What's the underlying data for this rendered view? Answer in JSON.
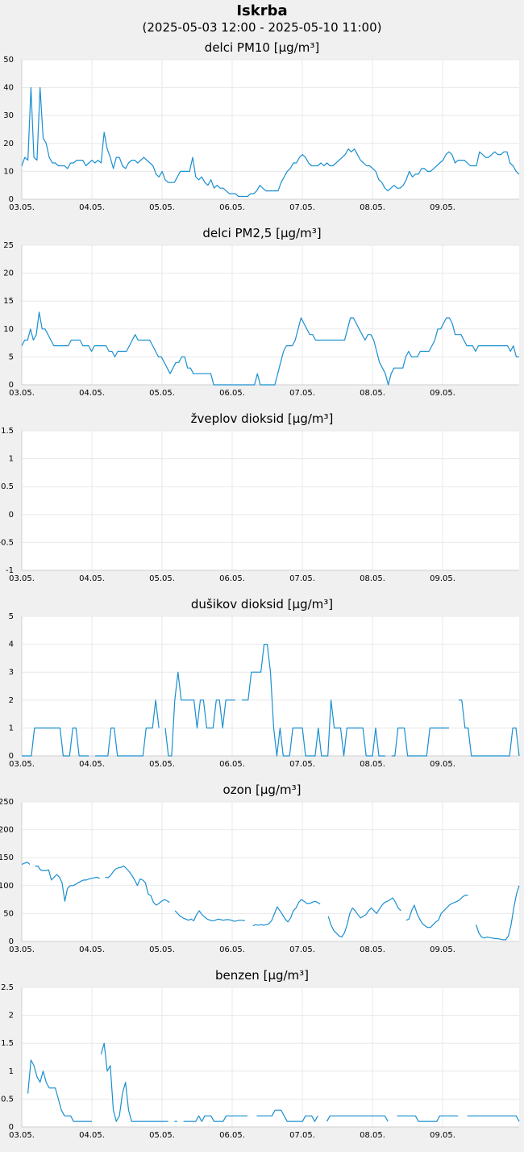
{
  "station": "Iskrba",
  "period": "(2025-05-03 12:00 - 2025-05-10 11:00)",
  "colors": {
    "series": "#1a8fd0",
    "grid": "#e8e8e8",
    "plot_background": "#ffffff",
    "page_background": "#f0f0f0"
  },
  "chart_data": [
    {
      "type": "line",
      "title": "delci PM10 [µg/m³]",
      "x_ticks": [
        "03.05.",
        "04.05.",
        "05.05.",
        "06.05.",
        "07.05.",
        "08.05.",
        "09.05."
      ],
      "y_ticks": [
        "0",
        "10",
        "20",
        "30",
        "40",
        "50"
      ],
      "ylim": [
        0,
        50
      ],
      "grid": true,
      "series": [
        {
          "values": [
            12,
            15,
            14,
            40,
            15,
            14,
            40,
            22,
            20,
            15,
            13,
            13,
            12,
            12,
            12,
            11,
            13,
            13,
            14,
            14,
            14,
            12,
            13,
            14,
            13,
            14,
            13,
            24,
            18,
            15,
            11,
            15,
            15,
            12,
            11,
            13,
            14,
            14,
            13,
            14,
            15,
            14,
            13,
            12,
            9,
            8,
            10,
            7,
            6,
            6,
            6,
            8,
            10,
            10,
            10,
            10,
            15,
            8,
            7,
            8,
            6,
            5,
            7,
            4,
            5,
            4,
            4,
            3,
            2,
            2,
            2,
            1,
            1,
            1,
            1,
            2,
            2,
            3,
            5,
            4,
            3,
            3,
            3,
            3,
            3,
            6,
            8,
            10,
            11,
            13,
            13,
            15,
            16,
            15,
            13,
            12,
            12,
            12,
            13,
            12,
            13,
            12,
            12,
            13,
            14,
            15,
            16,
            18,
            17,
            18,
            16,
            14,
            13,
            12,
            12,
            11,
            10,
            7,
            6,
            4,
            3,
            4,
            5,
            4,
            4,
            5,
            7,
            10,
            8,
            9,
            9,
            11,
            11,
            10,
            10,
            11,
            12,
            13,
            14,
            16,
            17,
            16,
            13,
            14,
            14,
            14,
            13,
            12,
            12,
            12,
            17,
            16,
            15,
            15,
            16,
            17,
            16,
            16,
            17,
            17,
            13,
            12,
            10,
            9
          ]
        }
      ]
    },
    {
      "type": "line",
      "title": "delci PM2,5 [µg/m³]",
      "x_ticks": [
        "03.05.",
        "04.05.",
        "05.05.",
        "06.05.",
        "07.05.",
        "08.05.",
        "09.05."
      ],
      "y_ticks": [
        "0",
        "5",
        "10",
        "15",
        "20",
        "25"
      ],
      "ylim": [
        0,
        25
      ],
      "grid": true,
      "series": [
        {
          "values": [
            7,
            8,
            8,
            10,
            8,
            9,
            13,
            10,
            10,
            9,
            8,
            7,
            7,
            7,
            7,
            7,
            7,
            8,
            8,
            8,
            8,
            7,
            7,
            7,
            6,
            7,
            7,
            7,
            7,
            7,
            6,
            6,
            5,
            6,
            6,
            6,
            6,
            7,
            8,
            9,
            8,
            8,
            8,
            8,
            8,
            7,
            6,
            5,
            5,
            4,
            3,
            2,
            3,
            4,
            4,
            5,
            5,
            3,
            3,
            2,
            2,
            2,
            2,
            2,
            2,
            2,
            0,
            0,
            0,
            0,
            0,
            0,
            0,
            0,
            0,
            0,
            0,
            0,
            0,
            0,
            0,
            2,
            0,
            0,
            0,
            0,
            0,
            0,
            2,
            4,
            6,
            7,
            7,
            7,
            8,
            10,
            12,
            11,
            10,
            9,
            9,
            8,
            8,
            8,
            8,
            8,
            8,
            8,
            8,
            8,
            8,
            8,
            10,
            12,
            12,
            11,
            10,
            9,
            8,
            9,
            9,
            8,
            6,
            4,
            3,
            2,
            0,
            2,
            3,
            3,
            3,
            3,
            5,
            6,
            5,
            5,
            5,
            6,
            6,
            6,
            6,
            7,
            8,
            10,
            10,
            11,
            12,
            12,
            11,
            9,
            9,
            9,
            8,
            7,
            7,
            7,
            6,
            7,
            7,
            7,
            7,
            7,
            7,
            7,
            7,
            7,
            7,
            7,
            6,
            7,
            5,
            5
          ]
        }
      ]
    },
    {
      "type": "line",
      "title": "žveplov dioksid [µg/m³]",
      "x_ticks": [
        "03.05.",
        "04.05.",
        "05.05.",
        "06.05.",
        "07.05.",
        "08.05.",
        "09.05."
      ],
      "y_ticks": [
        "-1",
        "-0.5",
        "0",
        "0.5",
        "1",
        "1.5"
      ],
      "ylim": [
        -1,
        1.5
      ],
      "grid": true,
      "series": [
        {
          "values": []
        }
      ]
    },
    {
      "type": "line",
      "title": "dušikov dioksid [µg/m³]",
      "x_ticks": [
        "03.05.",
        "04.05.",
        "05.05.",
        "06.05.",
        "07.05.",
        "08.05.",
        "09.05."
      ],
      "y_ticks": [
        "0",
        "1",
        "2",
        "3",
        "4",
        "5"
      ],
      "ylim": [
        0,
        5
      ],
      "grid": true,
      "series": [
        {
          "values": [
            0,
            0,
            0,
            0,
            1,
            1,
            1,
            1,
            1,
            1,
            1,
            1,
            1,
            0,
            0,
            0,
            1,
            1,
            0,
            0,
            0,
            0,
            null,
            0,
            0,
            0,
            0,
            0,
            1,
            1,
            0,
            0,
            0,
            0,
            0,
            0,
            0,
            0,
            0,
            1,
            1,
            1,
            2,
            1,
            null,
            1,
            0,
            0,
            2,
            3,
            2,
            2,
            2,
            2,
            2,
            1,
            2,
            2,
            1,
            1,
            1,
            2,
            2,
            1,
            2,
            2,
            2,
            2,
            null,
            2,
            2,
            2,
            3,
            3,
            3,
            3,
            4,
            4,
            3,
            1,
            0,
            1,
            0,
            0,
            0,
            1,
            1,
            1,
            1,
            0,
            0,
            0,
            0,
            1,
            0,
            0,
            0,
            2,
            1,
            1,
            1,
            0,
            1,
            1,
            1,
            1,
            1,
            1,
            0,
            0,
            0,
            1,
            0,
            0,
            0,
            null,
            0,
            0,
            1,
            1,
            1,
            0,
            0,
            0,
            0,
            0,
            0,
            0,
            1,
            1,
            1,
            1,
            1,
            1,
            1,
            null,
            null,
            2,
            2,
            1,
            1,
            0,
            0,
            0,
            0,
            0,
            0,
            0,
            0,
            0,
            0,
            0,
            0,
            0,
            1,
            1,
            0
          ]
        }
      ]
    },
    {
      "type": "line",
      "title": "ozon [µg/m³]",
      "x_ticks": [
        "03.05.",
        "04.05.",
        "05.05.",
        "06.05.",
        "07.05.",
        "08.05.",
        "09.05."
      ],
      "y_ticks": [
        "0",
        "50",
        "100",
        "150",
        "200",
        "250"
      ],
      "ylim": [
        0,
        250
      ],
      "grid": true,
      "series": [
        {
          "values": [
            138,
            140,
            142,
            138,
            null,
            135,
            135,
            128,
            127,
            127,
            128,
            110,
            115,
            120,
            115,
            105,
            72,
            95,
            100,
            100,
            102,
            105,
            108,
            110,
            110,
            112,
            113,
            114,
            115,
            113,
            null,
            115,
            114,
            118,
            125,
            130,
            132,
            133,
            135,
            130,
            125,
            118,
            110,
            100,
            112,
            110,
            105,
            85,
            82,
            70,
            65,
            68,
            72,
            75,
            73,
            70,
            null,
            55,
            50,
            45,
            42,
            40,
            38,
            40,
            37,
            48,
            55,
            48,
            44,
            40,
            38,
            37,
            38,
            40,
            39,
            38,
            39,
            39,
            38,
            36,
            37,
            38,
            38,
            37,
            null,
            null,
            28,
            30,
            29,
            30,
            29,
            30,
            32,
            38,
            50,
            62,
            55,
            48,
            40,
            35,
            42,
            55,
            60,
            70,
            75,
            72,
            68,
            68,
            70,
            72,
            70,
            67,
            null,
            null,
            45,
            30,
            20,
            15,
            10,
            8,
            15,
            30,
            50,
            60,
            55,
            48,
            42,
            45,
            48,
            55,
            60,
            55,
            50,
            58,
            65,
            70,
            72,
            75,
            78,
            70,
            60,
            55,
            null,
            38,
            40,
            55,
            65,
            50,
            40,
            32,
            28,
            25,
            25,
            30,
            35,
            38,
            50,
            55,
            60,
            65,
            68,
            70,
            72,
            75,
            80,
            83,
            83,
            null,
            null,
            30,
            15,
            8,
            6,
            8,
            7,
            6,
            5,
            5,
            4,
            3,
            3,
            10,
            30,
            60,
            85,
            100
          ]
        }
      ]
    },
    {
      "type": "line",
      "title": "benzen [µg/m³]",
      "x_ticks": [
        "03.05.",
        "04.05.",
        "05.05.",
        "06.05.",
        "07.05.",
        "08.05.",
        "09.05."
      ],
      "y_ticks": [
        "0",
        "0.5",
        "1",
        "1.5",
        "2",
        "2.5"
      ],
      "ylim": [
        0,
        2.5
      ],
      "grid": true,
      "series": [
        {
          "values": [
            null,
            null,
            0.6,
            1.2,
            1.1,
            0.9,
            0.8,
            1,
            0.8,
            0.7,
            0.7,
            0.7,
            0.5,
            0.3,
            0.2,
            0.2,
            0.2,
            0.1,
            0.1,
            0.1,
            0.1,
            0.1,
            0.1,
            0.1,
            null,
            null,
            1.3,
            1.5,
            1,
            1.1,
            0.3,
            0.1,
            0.2,
            0.6,
            0.8,
            0.3,
            0.1,
            0.1,
            0.1,
            0.1,
            0.1,
            0.1,
            0.1,
            0.1,
            0.1,
            0.1,
            0.1,
            0.1,
            0.1,
            null,
            0.1,
            0.1,
            null,
            0.1,
            0.1,
            0.1,
            0.1,
            0.1,
            0.2,
            0.1,
            0.2,
            0.2,
            0.2,
            0.1,
            0.1,
            0.1,
            0.1,
            0.2,
            0.2,
            0.2,
            0.2,
            0.2,
            0.2,
            0.2,
            0.2,
            null,
            null,
            0.2,
            0.2,
            0.2,
            0.2,
            0.2,
            0.2,
            0.3,
            0.3,
            0.3,
            0.2,
            0.1,
            0.1,
            0.1,
            0.1,
            0.1,
            0.1,
            0.2,
            0.2,
            0.2,
            0.1,
            0.2,
            null,
            null,
            0.1,
            0.2,
            0.2,
            0.2,
            0.2,
            0.2,
            0.2,
            0.2,
            0.2,
            0.2,
            0.2,
            0.2,
            0.2,
            0.2,
            0.2,
            0.2,
            0.2,
            0.2,
            0.2,
            0.2,
            0.1,
            null,
            null,
            0.2,
            0.2,
            0.2,
            0.2,
            0.2,
            0.2,
            0.2,
            0.1,
            0.1,
            0.1,
            0.1,
            0.1,
            0.1,
            0.1,
            0.2,
            0.2,
            0.2,
            0.2,
            0.2,
            0.2,
            0.2,
            null,
            null,
            0.2,
            0.2,
            0.2,
            0.2,
            0.2,
            0.2,
            0.2,
            0.2,
            0.2,
            0.2,
            0.2,
            0.2,
            0.2,
            0.2,
            0.2,
            0.2,
            0.2,
            0.1
          ]
        }
      ]
    }
  ]
}
